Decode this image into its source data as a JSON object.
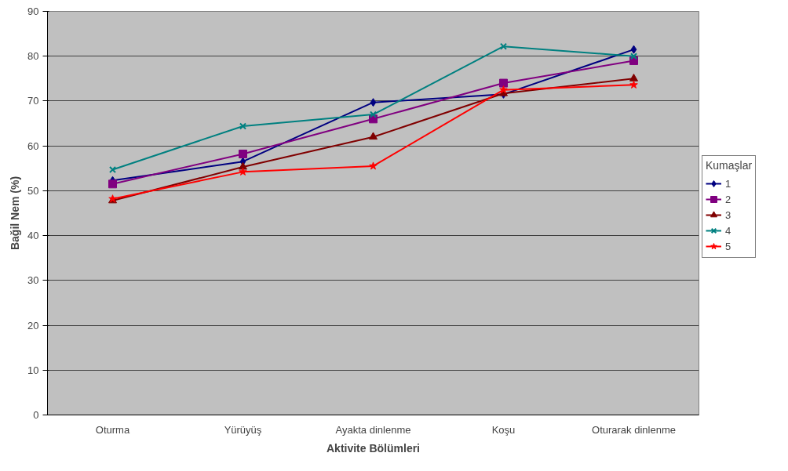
{
  "chart_data": {
    "type": "line",
    "xlabel": "Aktivite Bölümleri",
    "ylabel": "Bağil Nem (%)",
    "legend_title": "Kumaşlar",
    "categories": [
      "Oturma",
      "Yürüyüş",
      "Ayakta dinlenme",
      "Koşu",
      "Oturarak dinlenme"
    ],
    "ylim": [
      0,
      90
    ],
    "yticks": [
      0,
      10,
      20,
      30,
      40,
      50,
      60,
      70,
      80,
      90
    ],
    "grid": "y",
    "legend": "right",
    "series": [
      {
        "name": "1",
        "color": "#000080",
        "marker": "diamond",
        "values": [
          52.3,
          56.5,
          69.7,
          71.5,
          81.5
        ]
      },
      {
        "name": "2",
        "color": "#800080",
        "marker": "square",
        "values": [
          51.5,
          58.2,
          66.0,
          74.0,
          79.0
        ]
      },
      {
        "name": "3",
        "color": "#800000",
        "marker": "triangle",
        "values": [
          47.8,
          55.3,
          62.0,
          71.7,
          75.0
        ]
      },
      {
        "name": "4",
        "color": "#008080",
        "marker": "cross",
        "values": [
          54.7,
          64.4,
          67.0,
          82.2,
          80.0
        ]
      },
      {
        "name": "5",
        "color": "#ff0000",
        "marker": "star",
        "values": [
          48.2,
          54.2,
          55.5,
          72.5,
          73.6
        ]
      }
    ]
  }
}
